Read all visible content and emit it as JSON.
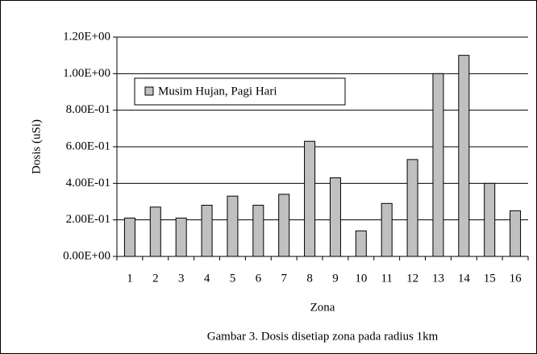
{
  "chart_data": {
    "type": "bar",
    "y_label": "Dosis (uSi)",
    "x_label": "Zona",
    "caption": "Gambar 3. Dosis disetiap zona pada radius 1km",
    "categories": [
      "1",
      "2",
      "3",
      "4",
      "5",
      "6",
      "7",
      "8",
      "9",
      "10",
      "11",
      "12",
      "13",
      "14",
      "15",
      "16"
    ],
    "series": [
      {
        "name": "Musim Hujan, Pagi Hari",
        "color": "#c0c0c0",
        "values": [
          0.21,
          0.27,
          0.21,
          0.28,
          0.33,
          0.28,
          0.34,
          0.63,
          0.43,
          0.14,
          0.29,
          0.53,
          1.0,
          1.1,
          0.4,
          0.25
        ]
      }
    ],
    "ylim": [
      0,
      1.2
    ],
    "yticks": [
      {
        "value": 0,
        "label": "0.00E+00"
      },
      {
        "value": 0.2,
        "label": "2.00E-01"
      },
      {
        "value": 0.4,
        "label": "4.00E-01"
      },
      {
        "value": 0.6,
        "label": "6.00E-01"
      },
      {
        "value": 0.8,
        "label": "8.00E-01"
      },
      {
        "value": 1.0,
        "label": "1.00E+00"
      },
      {
        "value": 1.2,
        "label": "1.20E+00"
      }
    ],
    "grid": true,
    "legend": "upper left"
  }
}
